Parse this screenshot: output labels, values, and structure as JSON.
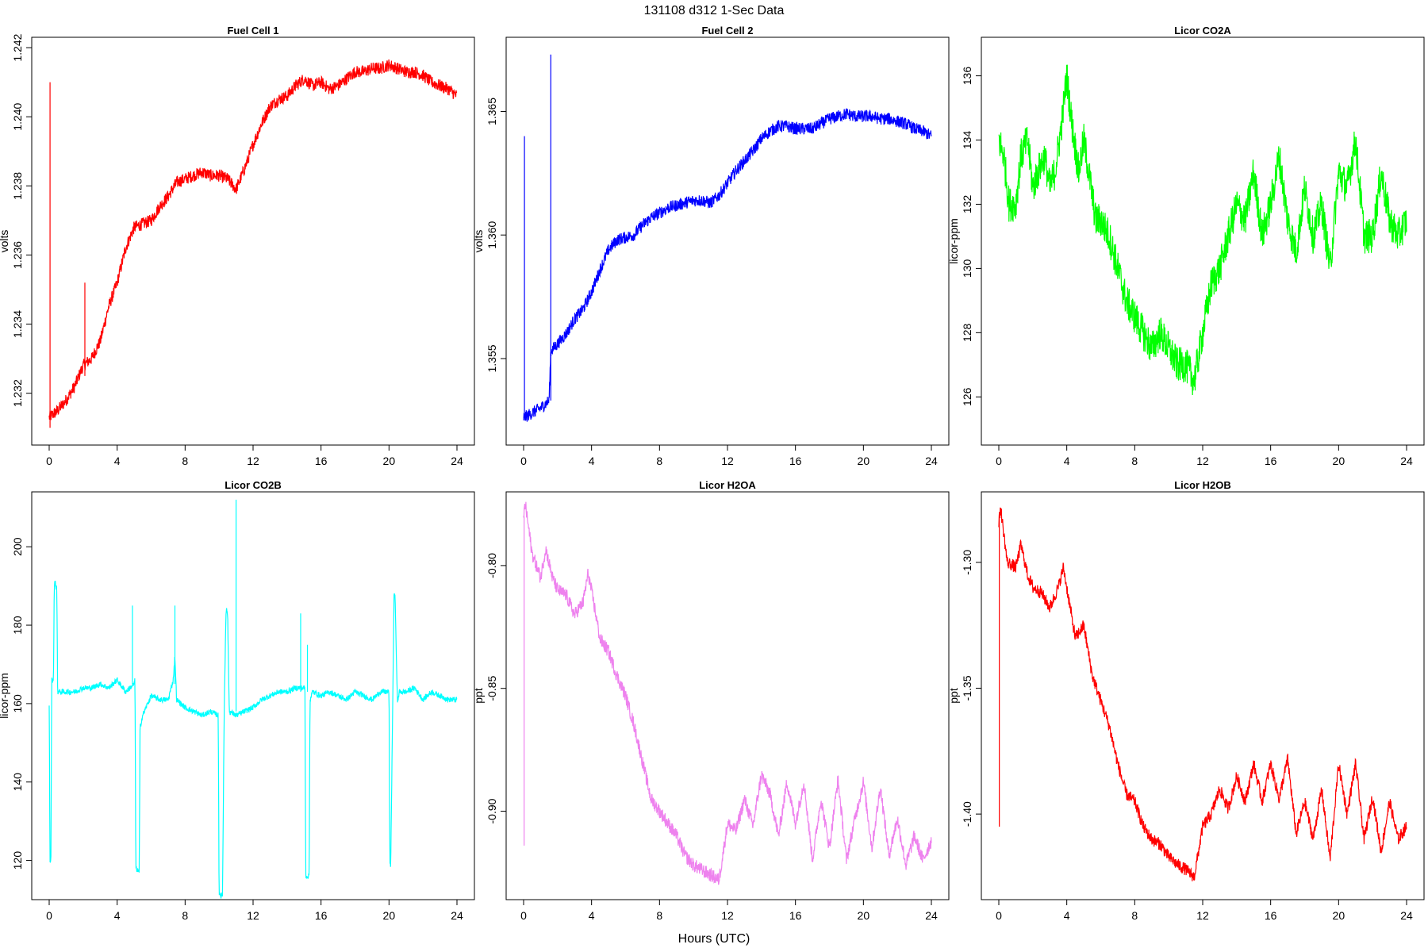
{
  "figure": {
    "title": "131108   d312   1-Sec Data",
    "xlabel": "Hours (UTC)"
  },
  "chart_data": [
    {
      "type": "line",
      "title": "Fuel Cell 1",
      "ylabel": "volts",
      "color": "#ff0000",
      "xlim": [
        0,
        24
      ],
      "ylim": [
        1.2305,
        1.2423
      ],
      "xticks": [
        0,
        4,
        8,
        12,
        16,
        20,
        24
      ],
      "yticks": [
        1.232,
        1.234,
        1.236,
        1.238,
        1.24,
        1.242
      ],
      "ytick_labels": [
        "1.232",
        "1.234",
        "1.236",
        "1.238",
        "1.240",
        "1.242"
      ],
      "noise": 0.00018,
      "x": [
        0,
        0.5,
        1,
        1.5,
        2,
        2.5,
        3,
        3.5,
        4,
        4.5,
        5,
        5.5,
        6,
        6.5,
        7,
        7.5,
        8,
        8.5,
        9,
        9.5,
        10,
        10.5,
        11,
        11.5,
        12,
        12.5,
        13,
        13.5,
        14,
        14.5,
        15,
        15.5,
        16,
        16.5,
        17,
        17.5,
        18,
        18.5,
        19,
        19.5,
        20,
        20.5,
        21,
        21.5,
        22,
        22.5,
        23,
        23.5,
        24
      ],
      "y": [
        1.2313,
        1.2315,
        1.2318,
        1.2322,
        1.2328,
        1.233,
        1.2335,
        1.2345,
        1.2352,
        1.2362,
        1.2368,
        1.2369,
        1.237,
        1.2374,
        1.2377,
        1.2381,
        1.2382,
        1.2383,
        1.2384,
        1.2383,
        1.2383,
        1.2382,
        1.2379,
        1.2385,
        1.2392,
        1.2398,
        1.2403,
        1.2405,
        1.2406,
        1.2409,
        1.2411,
        1.2409,
        1.241,
        1.2408,
        1.2409,
        1.2411,
        1.2413,
        1.2413,
        1.2414,
        1.2414,
        1.2415,
        1.2414,
        1.2413,
        1.2413,
        1.2412,
        1.241,
        1.2409,
        1.2408,
        1.2406
      ],
      "spikes": [
        {
          "x": 0.05,
          "y0": 1.231,
          "y1": 1.241
        },
        {
          "x": 2.1,
          "y0": 1.2325,
          "y1": 1.2352
        }
      ]
    },
    {
      "type": "line",
      "title": "Fuel Cell 2",
      "ylabel": "volts",
      "color": "#0000ff",
      "xlim": [
        0,
        24
      ],
      "ylim": [
        1.3515,
        1.368
      ],
      "xticks": [
        0,
        4,
        8,
        12,
        16,
        20,
        24
      ],
      "yticks": [
        1.355,
        1.36,
        1.365
      ],
      "ytick_labels": [
        "1.355",
        "1.360",
        "1.365"
      ],
      "noise": 0.00025,
      "x": [
        0,
        0.5,
        1,
        1.5,
        1.6,
        2,
        2.5,
        3,
        3.5,
        4,
        4.5,
        5,
        5.5,
        6,
        6.5,
        7,
        7.5,
        8,
        8.5,
        9,
        9.5,
        10,
        10.5,
        11,
        11.5,
        12,
        12.5,
        13,
        13.5,
        14,
        14.5,
        15,
        15.5,
        16,
        16.5,
        17,
        17.5,
        18,
        18.5,
        19,
        19.5,
        20,
        20.5,
        21,
        21.5,
        22,
        22.5,
        23,
        23.5,
        24
      ],
      "y": [
        1.3526,
        1.3528,
        1.353,
        1.3533,
        1.3553,
        1.3556,
        1.356,
        1.3566,
        1.357,
        1.3577,
        1.3586,
        1.3594,
        1.3598,
        1.3599,
        1.36,
        1.3604,
        1.3607,
        1.3609,
        1.3611,
        1.3612,
        1.3613,
        1.3614,
        1.3614,
        1.3613,
        1.3616,
        1.3621,
        1.3626,
        1.363,
        1.3634,
        1.3639,
        1.3642,
        1.3644,
        1.3644,
        1.3643,
        1.3643,
        1.3643,
        1.3645,
        1.3647,
        1.3648,
        1.3649,
        1.3648,
        1.3648,
        1.3648,
        1.3647,
        1.3647,
        1.3646,
        1.3645,
        1.3643,
        1.3642,
        1.364
      ],
      "spikes": [
        {
          "x": 0.05,
          "y0": 1.3526,
          "y1": 1.364
        },
        {
          "x": 1.6,
          "y0": 1.3533,
          "y1": 1.3673
        }
      ]
    },
    {
      "type": "line",
      "title": "Licor CO2A",
      "ylabel": "licor-ppm",
      "color": "#00ff00",
      "xlim": [
        0,
        24
      ],
      "ylim": [
        124.5,
        137.2
      ],
      "xticks": [
        0,
        4,
        8,
        12,
        16,
        20,
        24
      ],
      "yticks": [
        126,
        128,
        130,
        132,
        134,
        136
      ],
      "ytick_labels": [
        "126",
        "128",
        "130",
        "132",
        "134",
        "136"
      ],
      "noise": 0.55,
      "x": [
        0,
        0.3,
        0.6,
        1,
        1.3,
        1.7,
        2,
        2.3,
        2.7,
        3,
        3.3,
        3.7,
        4,
        4.3,
        4.7,
        5,
        5.3,
        5.7,
        6,
        6.5,
        7,
        7.5,
        8,
        8.5,
        9,
        9.5,
        10,
        10.5,
        11,
        11.5,
        12,
        12.5,
        13,
        13.5,
        14,
        14.5,
        15,
        15.5,
        16,
        16.5,
        17,
        17.5,
        18,
        18.5,
        19,
        19.5,
        20,
        20.5,
        21,
        21.5,
        22,
        22.5,
        23,
        23.5,
        24
      ],
      "y": [
        134.0,
        133.5,
        132.0,
        132.0,
        133.5,
        134.0,
        132.5,
        133.0,
        133.5,
        132.5,
        133.0,
        134.5,
        136.0,
        134.5,
        133.0,
        134.0,
        133.0,
        131.5,
        131.5,
        131.0,
        130.0,
        129.0,
        128.5,
        128.0,
        127.5,
        128.0,
        127.5,
        127.0,
        127.0,
        126.5,
        128.0,
        129.5,
        130.0,
        131.0,
        132.0,
        131.5,
        133.0,
        131.0,
        132.0,
        133.5,
        131.5,
        130.5,
        132.5,
        131.0,
        132.0,
        130.0,
        133.0,
        132.5,
        134.0,
        131.0,
        131.0,
        133.0,
        131.5,
        131.0,
        131.5
      ]
    },
    {
      "type": "line",
      "title": "Licor CO2B",
      "ylabel": "licor-ppm",
      "color": "#00ffff",
      "xlim": [
        0,
        24
      ],
      "ylim": [
        110,
        214
      ],
      "xticks": [
        0,
        4,
        8,
        12,
        16,
        20,
        24
      ],
      "yticks": [
        120,
        140,
        160,
        180,
        200
      ],
      "ytick_labels": [
        "120",
        "140",
        "160",
        "180",
        "200"
      ],
      "noise": 0.7,
      "x": [
        0,
        0.05,
        0.1,
        0.15,
        0.25,
        0.3,
        0.35,
        0.45,
        0.5,
        1,
        1.5,
        2,
        2.5,
        3,
        3.5,
        4,
        4.5,
        5,
        5.05,
        5.1,
        5.3,
        5.35,
        5.5,
        6,
        6.5,
        7,
        7.3,
        7.4,
        7.5,
        8,
        8.5,
        9,
        9.5,
        9.95,
        10,
        10.1,
        10.2,
        10.3,
        10.4,
        10.45,
        10.5,
        10.6,
        11,
        11.5,
        12,
        12.5,
        13,
        13.5,
        14,
        14.5,
        15,
        15.05,
        15.1,
        15.3,
        15.35,
        15.5,
        16,
        16.5,
        17,
        17.5,
        18,
        18.5,
        19,
        19.5,
        20,
        20.05,
        20.1,
        20.3,
        20.35,
        20.5,
        20.6,
        21,
        21.5,
        22,
        22.5,
        23,
        23.5,
        24
      ],
      "y": [
        160,
        120,
        119,
        166,
        166,
        190,
        191,
        189,
        163,
        163,
        163,
        164,
        164,
        165,
        164,
        166,
        163,
        165,
        166,
        118,
        117,
        154,
        157,
        162,
        161,
        161,
        166,
        172,
        161,
        159,
        158,
        157,
        158,
        157,
        112,
        111,
        111,
        158,
        183,
        184,
        183,
        158,
        157,
        158,
        159,
        161,
        162,
        163,
        163,
        164,
        164,
        164,
        116,
        116,
        161,
        163,
        162,
        163,
        162,
        161,
        163,
        162,
        161,
        163,
        163,
        119,
        119,
        188,
        188,
        160,
        163,
        163,
        164,
        161,
        163,
        162,
        161,
        161
      ],
      "spikes": [
        {
          "x": 4.9,
          "y0": 165,
          "y1": 185
        },
        {
          "x": 7.4,
          "y0": 165,
          "y1": 185
        },
        {
          "x": 11.0,
          "y0": 158,
          "y1": 212
        },
        {
          "x": 15.2,
          "y0": 163,
          "y1": 175
        },
        {
          "x": 14.8,
          "y0": 163,
          "y1": 183
        }
      ]
    },
    {
      "type": "line",
      "title": "Licor H2OA",
      "ylabel": "ppt",
      "color": "#ee82ee",
      "xlim": [
        0,
        24
      ],
      "ylim": [
        -0.936,
        -0.77
      ],
      "xticks": [
        0,
        4,
        8,
        12,
        16,
        20,
        24
      ],
      "yticks": [
        -0.8,
        -0.85,
        -0.9
      ],
      "ytick_labels": [
        "-0.80",
        "-0.85",
        "-0.90"
      ],
      "noise": 0.0028,
      "x": [
        0,
        0.1,
        0.5,
        1,
        1.3,
        1.7,
        2,
        2.5,
        3,
        3.5,
        3.8,
        4.2,
        4.5,
        5,
        5.5,
        6,
        6.5,
        7,
        7.5,
        8,
        8.5,
        9,
        9.5,
        10,
        10.5,
        11,
        11.5,
        12,
        12.5,
        13,
        13.5,
        14,
        14.5,
        15,
        15.5,
        16,
        16.5,
        17,
        17.5,
        18,
        18.5,
        19,
        19.5,
        20,
        20.5,
        21,
        21.5,
        22,
        22.5,
        23,
        23.5,
        24
      ],
      "y": [
        -0.78,
        -0.775,
        -0.795,
        -0.805,
        -0.793,
        -0.805,
        -0.81,
        -0.812,
        -0.82,
        -0.815,
        -0.803,
        -0.818,
        -0.83,
        -0.835,
        -0.845,
        -0.853,
        -0.865,
        -0.88,
        -0.895,
        -0.9,
        -0.905,
        -0.91,
        -0.918,
        -0.922,
        -0.924,
        -0.926,
        -0.928,
        -0.905,
        -0.908,
        -0.895,
        -0.906,
        -0.885,
        -0.893,
        -0.91,
        -0.888,
        -0.905,
        -0.888,
        -0.92,
        -0.895,
        -0.915,
        -0.887,
        -0.92,
        -0.903,
        -0.888,
        -0.915,
        -0.89,
        -0.918,
        -0.903,
        -0.922,
        -0.91,
        -0.92,
        -0.912
      ],
      "spikes": [
        {
          "x": 0.03,
          "y0": -0.914,
          "y1": -0.78
        }
      ]
    },
    {
      "type": "line",
      "title": "Licor H2OB",
      "ylabel": "ppt",
      "color": "#ff0000",
      "xlim": [
        0,
        24
      ],
      "ylim": [
        -1.434,
        -1.272
      ],
      "xticks": [
        0,
        4,
        8,
        12,
        16,
        20,
        24
      ],
      "yticks": [
        -1.3,
        -1.35,
        -1.4
      ],
      "ytick_labels": [
        "-1.30",
        "-1.35",
        "-1.40"
      ],
      "noise": 0.0025,
      "x": [
        0,
        0.1,
        0.5,
        1,
        1.3,
        1.7,
        2,
        2.5,
        3,
        3.5,
        3.8,
        4.2,
        4.5,
        5,
        5.5,
        6,
        6.5,
        7,
        7.5,
        8,
        8.5,
        9,
        9.5,
        10,
        10.5,
        11,
        11.5,
        12,
        12.5,
        13,
        13.5,
        14,
        14.5,
        15,
        15.5,
        16,
        16.5,
        17,
        17.5,
        18,
        18.5,
        19,
        19.5,
        20,
        20.5,
        21,
        21.5,
        22,
        22.5,
        23,
        23.5,
        24
      ],
      "y": [
        -1.285,
        -1.278,
        -1.3,
        -1.302,
        -1.293,
        -1.305,
        -1.31,
        -1.312,
        -1.318,
        -1.31,
        -1.302,
        -1.318,
        -1.33,
        -1.325,
        -1.345,
        -1.355,
        -1.365,
        -1.38,
        -1.392,
        -1.395,
        -1.405,
        -1.41,
        -1.412,
        -1.417,
        -1.42,
        -1.422,
        -1.425,
        -1.405,
        -1.4,
        -1.39,
        -1.398,
        -1.385,
        -1.395,
        -1.38,
        -1.395,
        -1.38,
        -1.394,
        -1.378,
        -1.408,
        -1.395,
        -1.41,
        -1.39,
        -1.418,
        -1.38,
        -1.4,
        -1.38,
        -1.41,
        -1.393,
        -1.415,
        -1.395,
        -1.41,
        -1.405
      ],
      "spikes": [
        {
          "x": 0.03,
          "y0": -1.405,
          "y1": -1.28
        }
      ]
    }
  ]
}
